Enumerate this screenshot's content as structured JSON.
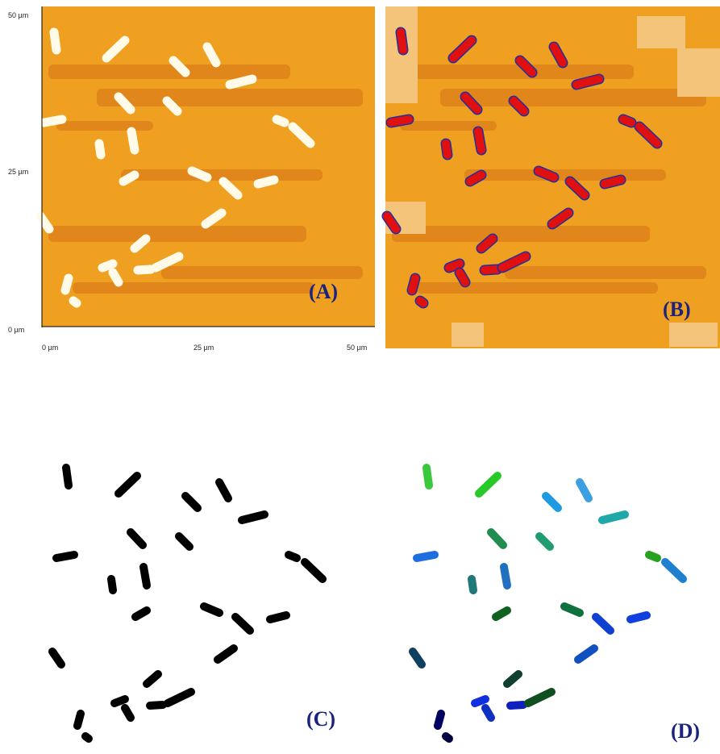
{
  "panel_a": {
    "y_labels": [
      "50 µm",
      "25 µm",
      "0 µm"
    ],
    "x_labels": [
      "0 µm",
      "25 µm",
      "50 µm"
    ],
    "label": "(A)"
  },
  "panel_b": {
    "label": "(B)"
  },
  "panel_c": {
    "label": "(C)"
  },
  "panel_d": {
    "label": "(D)"
  }
}
